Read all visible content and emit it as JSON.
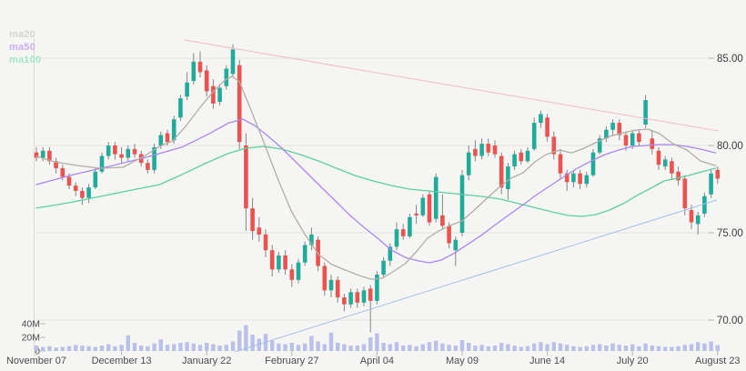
{
  "chart_data": {
    "type": "candlestick",
    "title": "",
    "legend": [
      {
        "label": "ma20",
        "color": "#d7d3cf",
        "line_color": "#b5aca6"
      },
      {
        "label": "ma50",
        "color": "#cbaff7",
        "line_color": "#aa86ef"
      },
      {
        "label": "ma100",
        "color": "#a2e8c8",
        "line_color": "#5ccf9f"
      }
    ],
    "y_axis": {
      "side": "right",
      "ticks": [
        {
          "price": 85,
          "label": "85.00"
        },
        {
          "price": 80,
          "label": "80.00"
        },
        {
          "price": 75,
          "label": "75.00"
        },
        {
          "price": 70,
          "label": "70.00"
        }
      ]
    },
    "volume_axis": {
      "unit": "M",
      "ticks": [
        {
          "value": 40,
          "label": "40M"
        },
        {
          "value": 20,
          "label": "20M"
        },
        {
          "value": 0,
          "label": "0"
        }
      ]
    },
    "x_axis": {
      "ticks": [
        {
          "i": 0,
          "label": "November 07"
        },
        {
          "i": 13,
          "label": "December 13"
        },
        {
          "i": 26,
          "label": "January 22"
        },
        {
          "i": 39,
          "label": "February 27"
        },
        {
          "i": 52,
          "label": "April 04"
        },
        {
          "i": 65,
          "label": "May 09"
        },
        {
          "i": 78,
          "label": "June 14"
        },
        {
          "i": 91,
          "label": "July 20"
        },
        {
          "i": 104,
          "label": "August 23"
        }
      ]
    },
    "colors": {
      "up": "#20ab9b",
      "down": "#ec5350",
      "wick": "#858585",
      "volume": "#bac0e8",
      "grid": "#e4e3e1",
      "axis_line": "#dcdad7",
      "tick": "#b5b5b5",
      "price_text": "#3c3c3c",
      "date_text": "#4c4c4c",
      "trend_down": "#f2bac4",
      "trend_up": "#a3bfe8",
      "background": "#f5f5f3"
    },
    "candles": [
      [
        79.6,
        79.9,
        79.1,
        79.3,
        8
      ],
      [
        79.3,
        79.9,
        79.1,
        79.7,
        6
      ],
      [
        79.7,
        79.9,
        78.9,
        79.1,
        7
      ],
      [
        79.1,
        79.3,
        78.4,
        78.7,
        5
      ],
      [
        78.7,
        78.9,
        78.0,
        78.2,
        6
      ],
      [
        78.2,
        78.4,
        77.5,
        77.7,
        7
      ],
      [
        77.7,
        77.9,
        77.1,
        77.4,
        9
      ],
      [
        77.4,
        77.6,
        76.6,
        77.0,
        8
      ],
      [
        77.0,
        77.8,
        76.7,
        77.6,
        7
      ],
      [
        77.6,
        78.7,
        77.5,
        78.5,
        6
      ],
      [
        78.5,
        79.6,
        78.4,
        79.4,
        8
      ],
      [
        79.4,
        80.2,
        79.2,
        80.0,
        10
      ],
      [
        80.0,
        80.2,
        79.2,
        79.5,
        7
      ],
      [
        79.5,
        79.9,
        79.0,
        79.3,
        9
      ],
      [
        79.3,
        80.0,
        79.1,
        79.8,
        23
      ],
      [
        79.8,
        80.1,
        79.3,
        79.5,
        12
      ],
      [
        79.5,
        79.7,
        78.8,
        79.0,
        8
      ],
      [
        79.0,
        79.2,
        78.4,
        78.6,
        7
      ],
      [
        78.6,
        80.1,
        78.4,
        79.9,
        11
      ],
      [
        80.0,
        80.8,
        79.8,
        80.6,
        17
      ],
      [
        80.7,
        80.9,
        80.0,
        80.2,
        9
      ],
      [
        80.3,
        81.7,
        80.1,
        81.5,
        10
      ],
      [
        81.6,
        82.9,
        81.4,
        82.7,
        12
      ],
      [
        82.8,
        84.2,
        82.6,
        83.6,
        13
      ],
      [
        83.7,
        85.3,
        83.5,
        84.8,
        11
      ],
      [
        84.8,
        85.4,
        83.9,
        84.2,
        9
      ],
      [
        84.3,
        84.6,
        82.8,
        83.1,
        12
      ],
      [
        83.4,
        83.8,
        82.1,
        82.4,
        10
      ],
      [
        82.5,
        83.5,
        82.3,
        83.3,
        8
      ],
      [
        83.4,
        84.6,
        83.2,
        84.4,
        9
      ],
      [
        84.1,
        85.8,
        83.9,
        85.5,
        14
      ],
      [
        84.6,
        84.9,
        79.8,
        80.2,
        30
      ],
      [
        80.0,
        80.7,
        75.1,
        76.4,
        38
      ],
      [
        76.4,
        77.0,
        74.6,
        75.1,
        24
      ],
      [
        75.3,
        75.9,
        74.5,
        74.9,
        18
      ],
      [
        74.9,
        75.2,
        73.6,
        74.0,
        25
      ],
      [
        74.0,
        74.3,
        72.5,
        72.9,
        15
      ],
      [
        72.9,
        73.9,
        72.7,
        73.7,
        11
      ],
      [
        73.7,
        74.0,
        72.6,
        72.9,
        10
      ],
      [
        72.9,
        73.2,
        71.9,
        72.3,
        12
      ],
      [
        72.3,
        73.5,
        72.1,
        73.3,
        9
      ],
      [
        73.3,
        74.5,
        73.1,
        74.3,
        11
      ],
      [
        74.3,
        75.3,
        74.0,
        74.9,
        22
      ],
      [
        74.6,
        74.8,
        72.8,
        73.1,
        14
      ],
      [
        73.1,
        73.3,
        71.4,
        71.7,
        10
      ],
      [
        71.7,
        72.6,
        71.3,
        72.3,
        27
      ],
      [
        72.3,
        72.5,
        71.0,
        71.3,
        12
      ],
      [
        71.3,
        71.5,
        70.5,
        70.9,
        10
      ],
      [
        70.9,
        71.8,
        70.7,
        71.6,
        8
      ],
      [
        71.6,
        71.8,
        70.7,
        71.0,
        8
      ],
      [
        71.0,
        71.9,
        70.8,
        71.7,
        10
      ],
      [
        71.8,
        72.0,
        69.3,
        71.1,
        20
      ],
      [
        71.1,
        72.8,
        70.9,
        72.6,
        26
      ],
      [
        72.6,
        73.6,
        72.4,
        73.4,
        12
      ],
      [
        73.4,
        74.4,
        73.1,
        74.2,
        10
      ],
      [
        74.2,
        75.6,
        74.0,
        75.2,
        13
      ],
      [
        75.2,
        75.5,
        74.6,
        74.8,
        8
      ],
      [
        74.8,
        76.1,
        74.7,
        75.9,
        9
      ],
      [
        76.1,
        76.6,
        75.5,
        76.0,
        7
      ],
      [
        76.0,
        77.2,
        75.9,
        77.0,
        10
      ],
      [
        77.2,
        77.4,
        75.4,
        75.6,
        13
      ],
      [
        75.8,
        78.4,
        75.6,
        78.2,
        15
      ],
      [
        76.0,
        77.2,
        75.2,
        75.4,
        11
      ],
      [
        75.4,
        75.6,
        74.1,
        74.4,
        9
      ],
      [
        74.0,
        74.8,
        73.1,
        74.6,
        8
      ],
      [
        75.0,
        78.6,
        74.8,
        78.3,
        16
      ],
      [
        78.3,
        80.0,
        78.0,
        79.6,
        12
      ],
      [
        79.8,
        80.3,
        79.1,
        79.4,
        8
      ],
      [
        79.4,
        80.4,
        79.2,
        80.1,
        9
      ],
      [
        80.1,
        80.4,
        79.4,
        79.6,
        7
      ],
      [
        80.0,
        80.3,
        79.3,
        79.5,
        8
      ],
      [
        79.4,
        79.6,
        77.2,
        77.6,
        12
      ],
      [
        77.5,
        79.0,
        76.9,
        78.8,
        10
      ],
      [
        78.8,
        79.7,
        78.6,
        79.5,
        8
      ],
      [
        79.6,
        79.8,
        78.9,
        79.1,
        6
      ],
      [
        79.1,
        79.9,
        79.0,
        79.7,
        7
      ],
      [
        79.8,
        81.6,
        79.7,
        81.3,
        11
      ],
      [
        81.3,
        82.0,
        81.0,
        81.8,
        13
      ],
      [
        81.6,
        81.8,
        80.2,
        80.5,
        10
      ],
      [
        80.5,
        80.8,
        79.2,
        79.5,
        13
      ],
      [
        79.5,
        79.8,
        78.1,
        78.4,
        11
      ],
      [
        78.4,
        78.6,
        77.4,
        77.9,
        9
      ],
      [
        77.9,
        78.6,
        77.6,
        78.4,
        7
      ],
      [
        78.4,
        78.6,
        77.5,
        77.8,
        6
      ],
      [
        77.8,
        78.5,
        77.6,
        78.3,
        7
      ],
      [
        78.3,
        79.8,
        78.2,
        79.6,
        9
      ],
      [
        79.6,
        80.6,
        79.5,
        80.4,
        10
      ],
      [
        80.4,
        81.1,
        80.2,
        80.9,
        8
      ],
      [
        80.9,
        81.5,
        80.6,
        81.3,
        11
      ],
      [
        81.3,
        81.5,
        80.3,
        80.6,
        9
      ],
      [
        80.6,
        80.8,
        79.7,
        80.0,
        8
      ],
      [
        80.0,
        80.9,
        79.8,
        80.7,
        10
      ],
      [
        80.7,
        80.9,
        80.0,
        80.2,
        7
      ],
      [
        81.2,
        82.9,
        81.0,
        82.6,
        11
      ],
      [
        80.4,
        80.9,
        79.5,
        79.8,
        8
      ],
      [
        79.7,
        79.9,
        78.6,
        78.9,
        7
      ],
      [
        78.8,
        79.4,
        78.6,
        79.2,
        6
      ],
      [
        79.1,
        79.3,
        78.1,
        78.4,
        6
      ],
      [
        78.5,
        78.8,
        77.7,
        78.0,
        7
      ],
      [
        78.1,
        78.3,
        76.0,
        76.4,
        9
      ],
      [
        76.3,
        76.6,
        75.2,
        75.6,
        10
      ],
      [
        75.5,
        76.2,
        74.9,
        76.0,
        13
      ],
      [
        76.1,
        77.3,
        75.9,
        77.1,
        11
      ],
      [
        77.2,
        78.6,
        77.0,
        78.4,
        14
      ],
      [
        78.6,
        78.8,
        77.8,
        78.1,
        9
      ]
    ],
    "ma20": [
      [
        0,
        79.38
      ],
      [
        2.8,
        79.06
      ],
      [
        6.3,
        78.85
      ],
      [
        9.7,
        78.7
      ],
      [
        13.2,
        78.75
      ],
      [
        16.4,
        79.38
      ],
      [
        18.8,
        79.95
      ],
      [
        20.8,
        80.26
      ],
      [
        22.9,
        81.15
      ],
      [
        25,
        82.19
      ],
      [
        27.1,
        83.13
      ],
      [
        28.8,
        83.75
      ],
      [
        29.9,
        83.96
      ],
      [
        31,
        83.65
      ],
      [
        32.6,
        82.19
      ],
      [
        34.7,
        80.21
      ],
      [
        36.8,
        78.13
      ],
      [
        38.9,
        76.25
      ],
      [
        41,
        74.9
      ],
      [
        43.1,
        73.75
      ],
      [
        45.1,
        73.18
      ],
      [
        47.2,
        72.86
      ],
      [
        49.3,
        72.55
      ],
      [
        51.1,
        72.34
      ],
      [
        52.8,
        72.4
      ],
      [
        54.4,
        72.76
      ],
      [
        56.3,
        73.23
      ],
      [
        58.1,
        73.96
      ],
      [
        59.7,
        74.69
      ],
      [
        61.4,
        75.1
      ],
      [
        63.2,
        75.42
      ],
      [
        65,
        75.68
      ],
      [
        66.7,
        76.25
      ],
      [
        68.8,
        76.98
      ],
      [
        70.8,
        77.66
      ],
      [
        72.5,
        78.13
      ],
      [
        74.3,
        78.44
      ],
      [
        76.1,
        79.06
      ],
      [
        77.8,
        79.48
      ],
      [
        79.9,
        79.74
      ],
      [
        81.7,
        79.58
      ],
      [
        83.3,
        79.79
      ],
      [
        85.4,
        80.16
      ],
      [
        87.5,
        80.52
      ],
      [
        89.6,
        80.73
      ],
      [
        91.7,
        80.89
      ],
      [
        93.3,
        80.94
      ],
      [
        95.1,
        80.68
      ],
      [
        97.2,
        80.1
      ],
      [
        99.3,
        79.74
      ],
      [
        101.4,
        79.11
      ],
      [
        103.7,
        78.85
      ]
    ],
    "ma50": [
      [
        0,
        77.76
      ],
      [
        5.6,
        78.33
      ],
      [
        11.1,
        78.8
      ],
      [
        16.7,
        79.32
      ],
      [
        22.2,
        79.9
      ],
      [
        26.4,
        80.68
      ],
      [
        29.4,
        81.3
      ],
      [
        31.5,
        81.51
      ],
      [
        33.3,
        81.15
      ],
      [
        35.4,
        80.52
      ],
      [
        37.5,
        79.84
      ],
      [
        39.6,
        79.06
      ],
      [
        41.7,
        78.28
      ],
      [
        43.8,
        77.5
      ],
      [
        45.8,
        76.77
      ],
      [
        47.9,
        75.99
      ],
      [
        50,
        75.31
      ],
      [
        52.1,
        74.69
      ],
      [
        54.2,
        74.01
      ],
      [
        56.3,
        73.59
      ],
      [
        58.3,
        73.39
      ],
      [
        60,
        73.28
      ],
      [
        61.8,
        73.44
      ],
      [
        63.9,
        73.85
      ],
      [
        66,
        74.38
      ],
      [
        68.1,
        74.9
      ],
      [
        70.1,
        75.47
      ],
      [
        72.2,
        76.04
      ],
      [
        74.3,
        76.61
      ],
      [
        76.4,
        77.19
      ],
      [
        78.5,
        77.71
      ],
      [
        80.6,
        78.23
      ],
      [
        82.6,
        78.7
      ],
      [
        84.7,
        79.11
      ],
      [
        86.8,
        79.48
      ],
      [
        88.9,
        79.74
      ],
      [
        91,
        79.95
      ],
      [
        93.1,
        80.0
      ],
      [
        95.1,
        80.05
      ],
      [
        97.2,
        80.05
      ],
      [
        99.3,
        79.95
      ],
      [
        101.4,
        79.79
      ],
      [
        103.7,
        79.58
      ]
    ],
    "ma100": [
      [
        0,
        76.41
      ],
      [
        4.9,
        76.72
      ],
      [
        9.7,
        77.08
      ],
      [
        14.6,
        77.45
      ],
      [
        18.8,
        77.76
      ],
      [
        22.2,
        78.33
      ],
      [
        25.7,
        78.96
      ],
      [
        29.2,
        79.53
      ],
      [
        31.9,
        79.84
      ],
      [
        34.7,
        79.95
      ],
      [
        37.5,
        79.79
      ],
      [
        40.3,
        79.48
      ],
      [
        43.1,
        79.11
      ],
      [
        45.8,
        78.7
      ],
      [
        48.6,
        78.28
      ],
      [
        51.4,
        77.97
      ],
      [
        54.2,
        77.71
      ],
      [
        56.9,
        77.5
      ],
      [
        59.7,
        77.4
      ],
      [
        62.5,
        77.29
      ],
      [
        65.3,
        77.19
      ],
      [
        68.1,
        77.08
      ],
      [
        70.8,
        76.93
      ],
      [
        73.6,
        76.67
      ],
      [
        76.4,
        76.41
      ],
      [
        79.2,
        76.15
      ],
      [
        81.3,
        75.99
      ],
      [
        83.3,
        75.94
      ],
      [
        85.4,
        76.04
      ],
      [
        87.5,
        76.3
      ],
      [
        89.6,
        76.67
      ],
      [
        91.7,
        77.14
      ],
      [
        93.8,
        77.55
      ],
      [
        95.8,
        77.97
      ],
      [
        97.9,
        78.13
      ],
      [
        100,
        78.33
      ],
      [
        102.1,
        78.54
      ],
      [
        103.7,
        78.7
      ]
    ],
    "trendlines": [
      {
        "name": "descending-resistance",
        "color_key": "trend_down",
        "i1": 22.6,
        "p1": 86.04,
        "i2": 104.2,
        "p2": 80.83
      },
      {
        "name": "ascending-support",
        "color_key": "trend_up",
        "i1": 30.3,
        "p1": 68.18,
        "i2": 103.9,
        "p2": 76.88
      }
    ]
  }
}
